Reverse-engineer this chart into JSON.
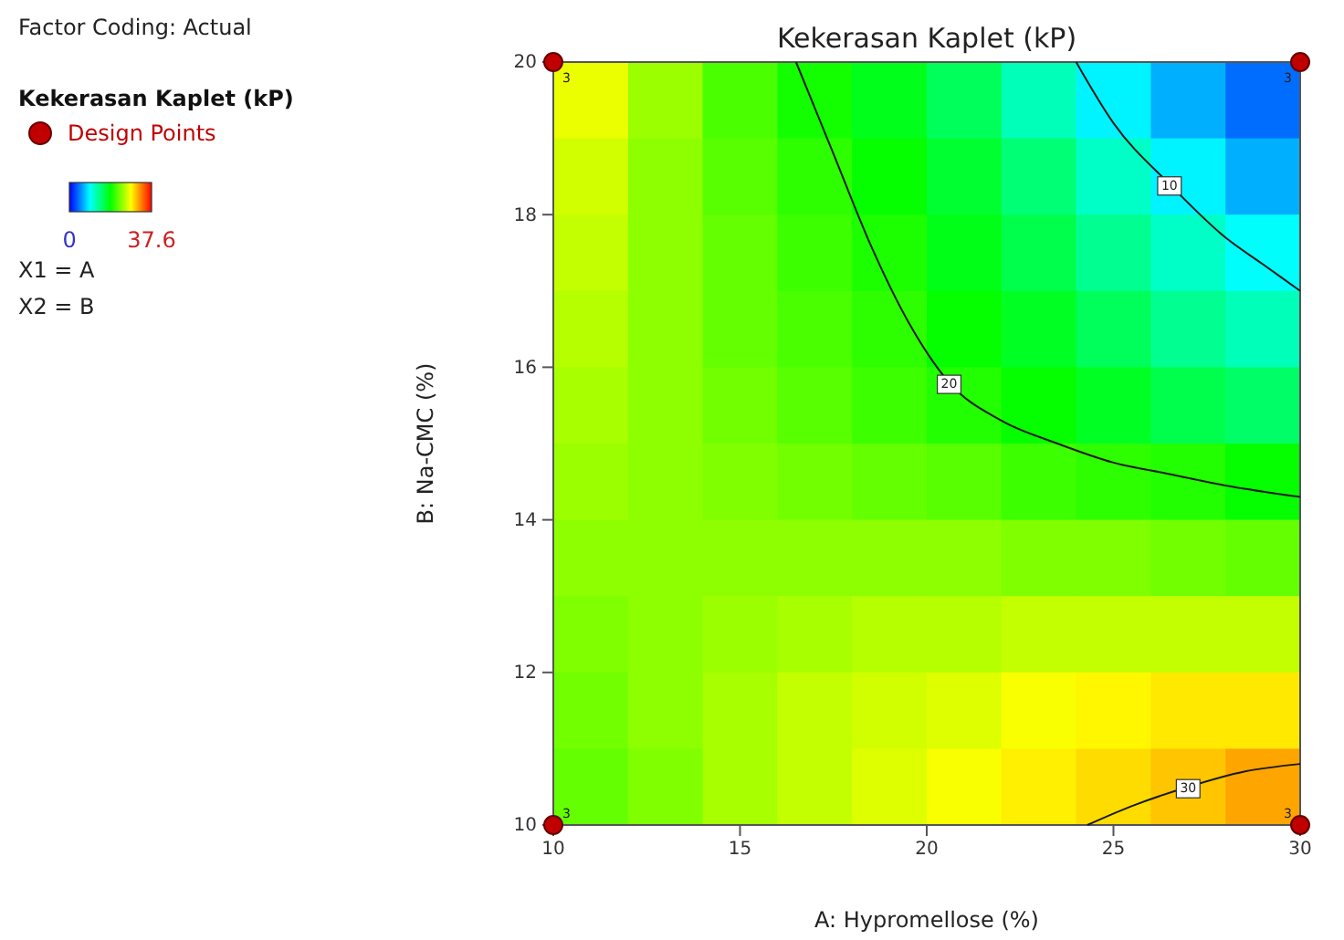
{
  "chart_data": {
    "type": "heatmap",
    "title": "Kekerasan Kaplet (kP)",
    "xlabel": "A: Hypromellose (%)",
    "ylabel": "B: Na-CMC (%)",
    "legend_title": "Kekerasan Kaplet (kP)",
    "x": [
      11,
      13,
      15,
      17,
      19,
      21,
      23,
      25,
      27,
      29
    ],
    "y": [
      19.5,
      18.5,
      17.5,
      16.5,
      15.5,
      14.5,
      13.5,
      12.5,
      11.5,
      10.5
    ],
    "cells": [
      [
        27.5,
        24.5,
        21.5,
        19.5,
        17.8,
        15.5,
        12,
        9,
        6.5,
        4
      ],
      [
        26.5,
        24,
        22,
        20.5,
        19,
        17,
        14.5,
        11.5,
        9,
        6.5
      ],
      [
        26,
        24,
        22.5,
        21,
        19.8,
        18,
        16,
        13.5,
        11.5,
        9.5
      ],
      [
        25.5,
        24,
        22.5,
        21.5,
        20.5,
        19,
        17.5,
        15.5,
        13.5,
        12
      ],
      [
        25,
        24,
        23,
        22,
        21,
        20,
        19,
        17.5,
        16,
        15
      ],
      [
        24.5,
        24,
        23.5,
        23,
        22.5,
        22,
        21,
        20.5,
        20,
        19
      ],
      [
        24,
        24,
        24,
        24,
        24,
        24,
        23.5,
        23.5,
        23,
        22.5
      ],
      [
        23.5,
        24,
        24.5,
        25,
        25.5,
        25.5,
        26,
        26,
        26,
        26
      ],
      [
        23,
        24,
        25,
        26,
        26.5,
        27,
        28,
        28.5,
        29,
        29
      ],
      [
        22.5,
        23.5,
        25,
        26,
        27,
        28,
        28.8,
        29.5,
        30.3,
        31.5
      ]
    ],
    "clim": [
      0,
      37.6
    ],
    "cticks": [
      0,
      37.6
    ],
    "xlim": [
      10,
      30
    ],
    "xticks": [
      10,
      15,
      20,
      25,
      30
    ],
    "ylim": [
      10,
      20
    ],
    "yticks": [
      10,
      12,
      14,
      16,
      18,
      20
    ],
    "series": [
      {
        "type": "line",
        "color": "#1a1a1a",
        "x": [
          16.5,
          17.5,
          18.5,
          19.5,
          20.6,
          22,
          23.5,
          25,
          26.5,
          28,
          30
        ],
        "values": [
          20,
          18.8,
          17.6,
          16.6,
          15.8,
          15.3,
          15.0,
          14.75,
          14.6,
          14.45,
          14.3
        ]
      },
      {
        "type": "line",
        "color": "#1a1a1a",
        "x": [
          24,
          25,
          26.5,
          28,
          29,
          30
        ],
        "values": [
          20,
          19.2,
          18.4,
          17.7,
          17.35,
          17
        ]
      },
      {
        "type": "line",
        "color": "#1a1a1a",
        "x": [
          24.3,
          25.5,
          27,
          28.5,
          30
        ],
        "values": [
          10,
          10.25,
          10.5,
          10.7,
          10.8
        ]
      },
      {
        "type": "scatter",
        "name": "Design Points",
        "color": "#c00000",
        "marker": "circle",
        "x": [
          10,
          30,
          10,
          30
        ],
        "values": [
          20,
          20,
          10,
          10
        ]
      }
    ],
    "annotations": [
      "Factor Coding: Actual",
      "X1 = A",
      "X2 = B",
      {
        "text": "10",
        "x": 26.5,
        "y": 18.4
      },
      {
        "text": "20",
        "x": 20.6,
        "y": 15.8
      },
      {
        "text": "30",
        "x": 27,
        "y": 10.5
      },
      {
        "text": "3",
        "x": 10,
        "y": 20
      },
      {
        "text": "3",
        "x": 30,
        "y": 20
      },
      {
        "text": "3",
        "x": 10,
        "y": 10
      },
      {
        "text": "3",
        "x": 30,
        "y": 10
      }
    ],
    "legend": "left"
  }
}
